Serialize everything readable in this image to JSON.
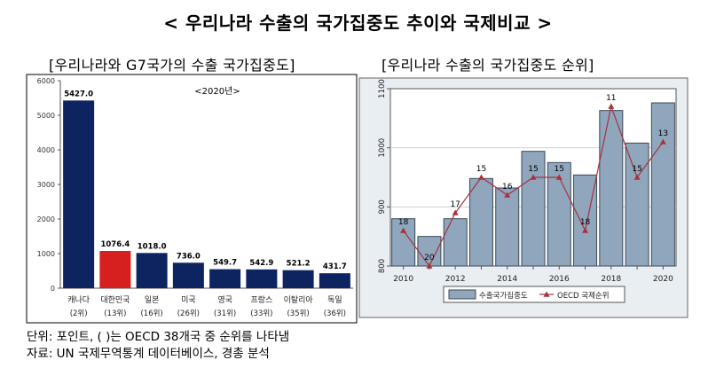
{
  "title": "< 우리나라 수출의 국가집중도 추이와 국제비교 >",
  "notes": {
    "unit": "단위: 포인트, ( )는 OECD 38개국 중 순위를 나타냄",
    "source": "자료: UN 국제무역통계 데이터베이스, 경총 분석"
  },
  "colors": {
    "navy": "#0d2460",
    "korea_red": "#d61f1f",
    "steel_bar": "#8fa6bd",
    "rank_line": "#a8323a",
    "plot_bg": "#e6ebf1"
  },
  "chart_data": [
    {
      "type": "bar",
      "title": "[우리나라와 G7국가의 수출 국가집중도]",
      "annotation": "<2020년>",
      "categories": [
        "캐나다",
        "대한민국",
        "일본",
        "미국",
        "영국",
        "프랑스",
        "이탈리아",
        "독일"
      ],
      "ranks": [
        "(2위)",
        "(13위)",
        "(16위)",
        "(26위)",
        "(31위)",
        "(33위)",
        "(35위)",
        "(36위)"
      ],
      "values": [
        5427.0,
        1076.4,
        1018.0,
        736.0,
        549.7,
        542.9,
        521.2,
        431.7
      ],
      "value_labels": [
        "5427.0",
        "1076.4",
        "1018.0",
        "736.0",
        "549.7",
        "542.9",
        "521.2",
        "431.7"
      ],
      "highlight": "대한민국",
      "ylim": [
        0,
        6000
      ],
      "yticks": [
        0,
        1000,
        2000,
        3000,
        4000,
        5000,
        6000
      ],
      "grid": false
    },
    {
      "type": "bar+line",
      "title": "[우리나라 수출의 국가집중도 순위]",
      "x": [
        2010,
        2011,
        2012,
        2013,
        2014,
        2015,
        2016,
        2017,
        2018,
        2019,
        2020
      ],
      "xticks": [
        2010,
        2012,
        2014,
        2016,
        2018,
        2020
      ],
      "yticks": [
        800,
        900,
        1000,
        1100
      ],
      "ylim": [
        800,
        1100
      ],
      "grid": true,
      "legend_position": "bottom",
      "series": [
        {
          "name": "수출국가집중도",
          "type": "bar",
          "values": [
            880,
            850,
            880,
            948,
            932,
            994,
            975,
            954,
            1063,
            1008,
            1076
          ]
        },
        {
          "name": "OECD 국제순위",
          "type": "line",
          "values": [
            18,
            20,
            17,
            15,
            16,
            15,
            15,
            18,
            11,
            15,
            13
          ]
        }
      ]
    }
  ]
}
